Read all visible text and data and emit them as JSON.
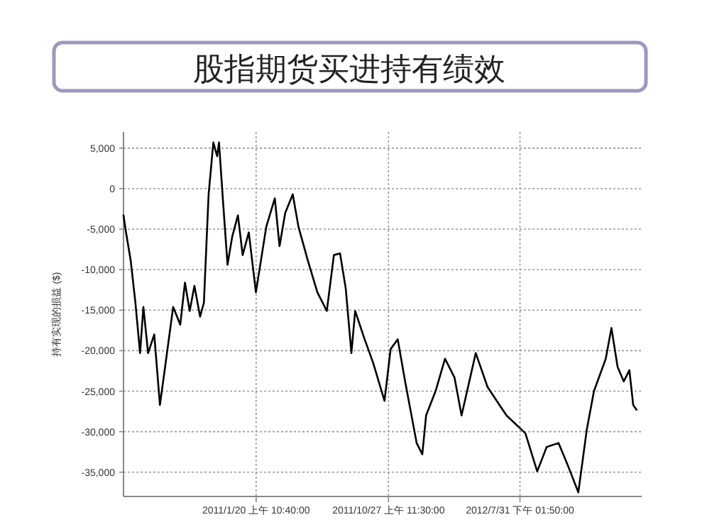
{
  "chart_data": {
    "type": "line",
    "title": "股指期货买进持有绩效",
    "ylabel": "持有实现的损益 ($)",
    "x": [
      "2010-04-15",
      "2010-04-20",
      "2010-04-30",
      "2010-05-10",
      "2010-05-20",
      "2010-05-27",
      "2010-06-06",
      "2010-06-19",
      "2010-07-01",
      "2010-07-12",
      "2010-07-29",
      "2010-08-13",
      "2010-08-23",
      "2010-09-02",
      "2010-09-12",
      "2010-09-24",
      "2010-10-02",
      "2010-10-12",
      "2010-10-22",
      "2010-10-30",
      "2010-11-03",
      "2010-11-11",
      "2010-11-21",
      "2010-12-01",
      "2010-12-13",
      "2010-12-23",
      "2011-01-05",
      "2011-01-20",
      "2011-02-11",
      "2011-03-01",
      "2011-03-11",
      "2011-03-23",
      "2011-04-08",
      "2011-04-20",
      "2011-05-10",
      "2011-05-30",
      "2011-06-19",
      "2011-07-04",
      "2011-07-17",
      "2011-07-29",
      "2011-08-10",
      "2011-08-18",
      "2011-09-07",
      "2011-09-25",
      "2011-10-19",
      "2011-11-01",
      "2011-11-16",
      "2011-12-01",
      "2011-12-26",
      "2012-01-07",
      "2012-01-15",
      "2012-02-04",
      "2012-02-24",
      "2012-03-15",
      "2012-03-30",
      "2012-04-29",
      "2012-05-24",
      "2012-07-03",
      "2012-08-12",
      "2012-09-06",
      "2012-09-26",
      "2012-10-21",
      "2012-11-10",
      "2012-12-02",
      "2012-12-20",
      "2013-01-04",
      "2013-01-29",
      "2013-02-10",
      "2013-02-23",
      "2013-03-08",
      "2013-03-20",
      "2013-03-28",
      "2013-04-04"
    ],
    "series": [
      {
        "color": "#000000",
        "values": [
          -3300,
          -5300,
          -8800,
          -14000,
          -20300,
          -14600,
          -20300,
          -18000,
          -26700,
          -22000,
          -14600,
          -16800,
          -11600,
          -15100,
          -12000,
          -15800,
          -14100,
          -700,
          5700,
          4000,
          5700,
          -1200,
          -9400,
          -5900,
          -3300,
          -8200,
          -5400,
          -12800,
          -4700,
          -1200,
          -7100,
          -3000,
          -700,
          -4700,
          -8900,
          -12800,
          -15100,
          -8200,
          -8000,
          -12300,
          -20300,
          -15100,
          -18600,
          -21500,
          -26200,
          -19800,
          -18600,
          -23600,
          -31400,
          -32800,
          -28000,
          -25000,
          -21000,
          -23300,
          -28000,
          -20300,
          -24500,
          -28000,
          -30200,
          -34900,
          -31900,
          -31400,
          -34200,
          -37500,
          -29700,
          -25000,
          -21000,
          -17200,
          -22000,
          -23800,
          -22400,
          -26700,
          -27300
        ]
      }
    ],
    "xlim": [
      "2010-04-15",
      "2013-04-15"
    ],
    "ylim": [
      -38000,
      7000
    ],
    "xticks": [
      {
        "value": "2011-01-20T10:40",
        "label": "2011/1/20 上午 10:40:00"
      },
      {
        "value": "2011-10-27T11:30",
        "label": "2011/10/27 上午 11:30:00"
      },
      {
        "value": "2012-07-31T13:50",
        "label": "2012/7/31 下午 01:50:00"
      }
    ],
    "yticks": [
      {
        "value": 5000,
        "label": "5,000"
      },
      0,
      {
        "value": -5000,
        "label": "-5,000"
      },
      {
        "value": -10000,
        "label": "-10,000"
      },
      {
        "value": -15000,
        "label": "-15,000"
      },
      {
        "value": -20000,
        "label": "-20,000"
      },
      {
        "value": -25000,
        "label": "-25,000"
      },
      {
        "value": -30000,
        "label": "-30,000"
      },
      {
        "value": -35000,
        "label": "-35,000"
      }
    ],
    "grid": true
  }
}
